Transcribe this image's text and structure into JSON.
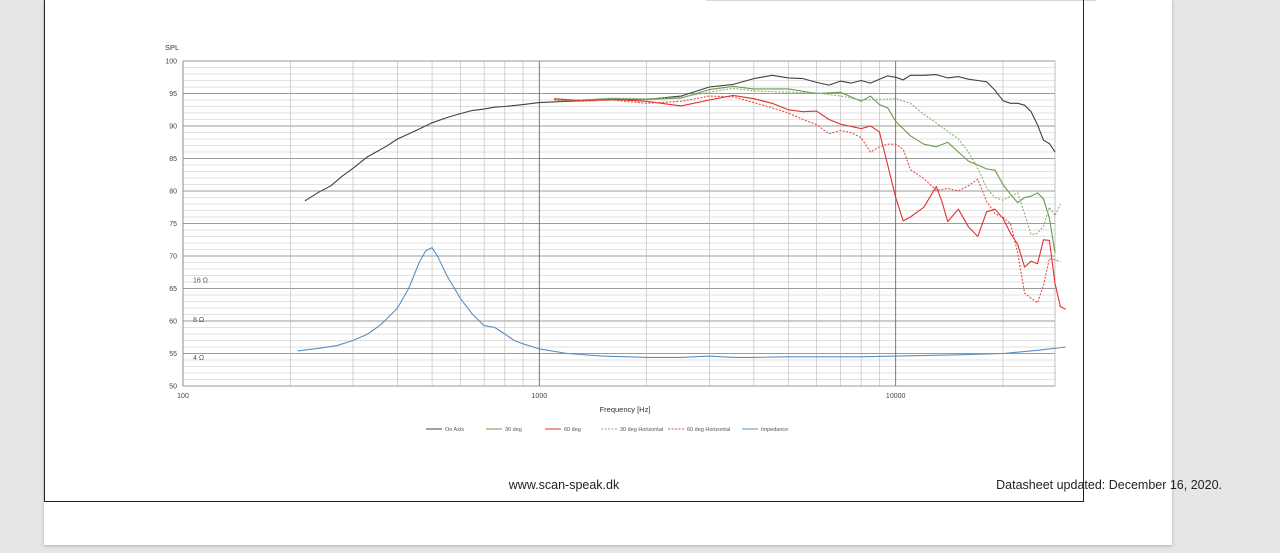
{
  "footer": {
    "url": "www.scan-speak.dk",
    "updated": "Datasheet updated: December 16, 2020."
  },
  "chart_data": {
    "type": "line",
    "ylabel": "SPL",
    "xlabel": "Frequency [Hz]",
    "xscale": "log",
    "xlim": [
      100,
      28000
    ],
    "ylim": [
      50,
      100
    ],
    "xticks": [
      {
        "value": 100,
        "label": "100"
      },
      {
        "value": 1000,
        "label": "1000"
      },
      {
        "value": 10000,
        "label": "10000"
      }
    ],
    "yticks": [
      {
        "value": 100,
        "label": "100"
      },
      {
        "value": 95,
        "label": "95"
      },
      {
        "value": 90,
        "label": "90"
      },
      {
        "value": 85,
        "label": "85"
      },
      {
        "value": 80,
        "label": "80"
      },
      {
        "value": 75,
        "label": "75"
      },
      {
        "value": 70,
        "label": "70"
      },
      {
        "value": 65,
        "label": "65"
      },
      {
        "value": 60,
        "label": "60"
      },
      {
        "value": 55,
        "label": "55"
      },
      {
        "value": 50,
        "label": "50"
      }
    ],
    "impedance_labels": [
      {
        "label": "16 Ω",
        "y": 66.3
      },
      {
        "label": "8 Ω",
        "y": 60.2
      },
      {
        "label": "4 Ω",
        "y": 54.4
      }
    ],
    "grid": true,
    "legend_position": "bottom",
    "series": [
      {
        "name": "On Axis",
        "color": "#404040",
        "dash": false,
        "points": [
          [
            220,
            78.5
          ],
          [
            240,
            79.8
          ],
          [
            260,
            80.8
          ],
          [
            280,
            82.3
          ],
          [
            300,
            83.5
          ],
          [
            330,
            85.3
          ],
          [
            370,
            86.8
          ],
          [
            400,
            88
          ],
          [
            450,
            89.3
          ],
          [
            500,
            90.5
          ],
          [
            550,
            91.3
          ],
          [
            600,
            91.9
          ],
          [
            650,
            92.4
          ],
          [
            700,
            92.6
          ],
          [
            750,
            92.9
          ],
          [
            800,
            93
          ],
          [
            900,
            93.3
          ],
          [
            1000,
            93.6
          ],
          [
            1200,
            93.8
          ],
          [
            1500,
            94
          ],
          [
            2000,
            94.1
          ],
          [
            2500,
            94.6
          ],
          [
            3000,
            96
          ],
          [
            3500,
            96.4
          ],
          [
            4000,
            97.3
          ],
          [
            4500,
            97.8
          ],
          [
            5000,
            97.4
          ],
          [
            5500,
            97.3
          ],
          [
            6000,
            96.7
          ],
          [
            6500,
            96.3
          ],
          [
            7000,
            96.9
          ],
          [
            7500,
            96.6
          ],
          [
            8000,
            97
          ],
          [
            8500,
            96.6
          ],
          [
            9000,
            97.2
          ],
          [
            9500,
            97.7
          ],
          [
            10000,
            97.5
          ],
          [
            10500,
            97.1
          ],
          [
            11000,
            97.8
          ],
          [
            12000,
            97.8
          ],
          [
            13000,
            97.9
          ],
          [
            14000,
            97.4
          ],
          [
            15000,
            97.6
          ],
          [
            16000,
            97.2
          ],
          [
            17000,
            97
          ],
          [
            18000,
            96.8
          ],
          [
            19000,
            95.5
          ],
          [
            20000,
            93.9
          ],
          [
            21000,
            93.5
          ],
          [
            22000,
            93.5
          ],
          [
            23000,
            93.2
          ],
          [
            24000,
            92.2
          ],
          [
            25000,
            90.2
          ],
          [
            26000,
            87.8
          ],
          [
            27000,
            87.3
          ],
          [
            28000,
            86
          ]
        ]
      },
      {
        "name": "30 deg",
        "color": "#6b9a4d",
        "dash": false,
        "points": [
          [
            1100,
            93.8
          ],
          [
            1300,
            94
          ],
          [
            1600,
            94.2
          ],
          [
            2000,
            94.1
          ],
          [
            2500,
            94.3
          ],
          [
            3000,
            95.6
          ],
          [
            3500,
            96.1
          ],
          [
            4000,
            95.7
          ],
          [
            5000,
            95.7
          ],
          [
            6000,
            95
          ],
          [
            7000,
            95.2
          ],
          [
            8000,
            93.8
          ],
          [
            8500,
            94.6
          ],
          [
            9000,
            93.3
          ],
          [
            9500,
            92.8
          ],
          [
            10000,
            90.7
          ],
          [
            11000,
            88.5
          ],
          [
            12000,
            87.2
          ],
          [
            13000,
            86.8
          ],
          [
            14000,
            87.5
          ],
          [
            15000,
            86
          ],
          [
            16000,
            84.6
          ],
          [
            17000,
            84
          ],
          [
            18000,
            83.4
          ],
          [
            19000,
            83.2
          ],
          [
            20000,
            81
          ],
          [
            21000,
            79.5
          ],
          [
            22000,
            78.2
          ],
          [
            23000,
            79
          ],
          [
            24000,
            79.2
          ],
          [
            25000,
            79.7
          ],
          [
            26000,
            78.8
          ],
          [
            27000,
            75.8
          ],
          [
            28000,
            70.5
          ]
        ]
      },
      {
        "name": "60 deg",
        "color": "#e03030",
        "dash": false,
        "points": [
          [
            1100,
            94.2
          ],
          [
            1300,
            93.9
          ],
          [
            1600,
            94.1
          ],
          [
            2000,
            93.8
          ],
          [
            2500,
            93.1
          ],
          [
            3000,
            94
          ],
          [
            3500,
            94.7
          ],
          [
            4000,
            94.2
          ],
          [
            4500,
            93.5
          ],
          [
            5000,
            92.5
          ],
          [
            5500,
            92.2
          ],
          [
            6000,
            92.3
          ],
          [
            6500,
            91
          ],
          [
            7000,
            90.3
          ],
          [
            8000,
            89.6
          ],
          [
            8500,
            90
          ],
          [
            9000,
            89.1
          ],
          [
            9500,
            84
          ],
          [
            10000,
            79
          ],
          [
            10500,
            75.4
          ],
          [
            11000,
            76
          ],
          [
            12000,
            77.5
          ],
          [
            13000,
            80.7
          ],
          [
            13500,
            78.3
          ],
          [
            14000,
            75.3
          ],
          [
            15000,
            77.2
          ],
          [
            16000,
            74.5
          ],
          [
            17000,
            73
          ],
          [
            18000,
            76.8
          ],
          [
            19000,
            77.2
          ],
          [
            20000,
            75.8
          ],
          [
            21000,
            73.5
          ],
          [
            22000,
            71.8
          ],
          [
            23000,
            68.3
          ],
          [
            24000,
            69.2
          ],
          [
            25000,
            68.8
          ],
          [
            26000,
            72.5
          ],
          [
            27000,
            72.4
          ],
          [
            28000,
            65.8
          ],
          [
            29000,
            62.2
          ],
          [
            30000,
            61.8
          ]
        ]
      },
      {
        "name": "30 deg Horizontal",
        "color": "#8fb070",
        "dash": true,
        "points": [
          [
            1300,
            94
          ],
          [
            1600,
            94.3
          ],
          [
            2000,
            94.2
          ],
          [
            2500,
            94.4
          ],
          [
            3000,
            95.2
          ],
          [
            3500,
            95.8
          ],
          [
            4000,
            95.4
          ],
          [
            5000,
            95.2
          ],
          [
            6000,
            95.1
          ],
          [
            7000,
            94.6
          ],
          [
            8000,
            94
          ],
          [
            9000,
            94.1
          ],
          [
            10000,
            94.2
          ],
          [
            11000,
            93.5
          ],
          [
            12000,
            91.8
          ],
          [
            13000,
            90.5
          ],
          [
            14000,
            89.2
          ],
          [
            15000,
            88
          ],
          [
            16000,
            86
          ],
          [
            17000,
            83.5
          ],
          [
            18000,
            80.5
          ],
          [
            19000,
            79
          ],
          [
            20000,
            78.6
          ],
          [
            21000,
            79.2
          ],
          [
            22000,
            79.7
          ],
          [
            23000,
            76.5
          ],
          [
            24000,
            73.3
          ],
          [
            25000,
            73.5
          ],
          [
            26000,
            74.6
          ],
          [
            27000,
            77.5
          ],
          [
            28000,
            76.2
          ],
          [
            29000,
            78
          ]
        ]
      },
      {
        "name": "60 deg Horizontal",
        "color": "#e84a4a",
        "dash": true,
        "points": [
          [
            1100,
            94.1
          ],
          [
            1300,
            93.8
          ],
          [
            1600,
            94
          ],
          [
            2000,
            93.5
          ],
          [
            2500,
            93.8
          ],
          [
            3000,
            94.6
          ],
          [
            3500,
            94.5
          ],
          [
            4000,
            93.6
          ],
          [
            4500,
            92.8
          ],
          [
            5000,
            92
          ],
          [
            5500,
            91
          ],
          [
            6000,
            90.2
          ],
          [
            6500,
            88.8
          ],
          [
            7000,
            89.3
          ],
          [
            7500,
            89
          ],
          [
            8000,
            88.2
          ],
          [
            8500,
            86
          ],
          [
            9000,
            86.8
          ],
          [
            9500,
            87.2
          ],
          [
            10000,
            87.2
          ],
          [
            10500,
            86.4
          ],
          [
            11000,
            83.3
          ],
          [
            12000,
            81.9
          ],
          [
            13000,
            80.1
          ],
          [
            14000,
            80.4
          ],
          [
            15000,
            80
          ],
          [
            16000,
            80.8
          ],
          [
            17000,
            81.8
          ],
          [
            18000,
            78.4
          ],
          [
            19000,
            76.5
          ],
          [
            20000,
            76
          ],
          [
            21000,
            75
          ],
          [
            22000,
            70.5
          ],
          [
            23000,
            64.3
          ],
          [
            24000,
            63.5
          ],
          [
            25000,
            62.8
          ],
          [
            26000,
            65.5
          ],
          [
            27000,
            69.6
          ],
          [
            28000,
            69.4
          ],
          [
            29000,
            69.1
          ]
        ]
      },
      {
        "name": "Impedance",
        "color": "#5b8fc4",
        "dash": false,
        "points": [
          [
            210,
            55.4
          ],
          [
            240,
            55.8
          ],
          [
            270,
            56.2
          ],
          [
            300,
            57
          ],
          [
            330,
            58
          ],
          [
            360,
            59.5
          ],
          [
            400,
            62
          ],
          [
            430,
            65
          ],
          [
            460,
            69
          ],
          [
            480,
            70.8
          ],
          [
            500,
            71.3
          ],
          [
            520,
            69.8
          ],
          [
            550,
            67
          ],
          [
            600,
            63.5
          ],
          [
            650,
            61
          ],
          [
            700,
            59.3
          ],
          [
            750,
            59
          ],
          [
            800,
            58
          ],
          [
            850,
            57
          ],
          [
            900,
            56.5
          ],
          [
            1000,
            55.7
          ],
          [
            1200,
            55
          ],
          [
            1500,
            54.6
          ],
          [
            2000,
            54.4
          ],
          [
            2500,
            54.4
          ],
          [
            3000,
            54.6
          ],
          [
            3500,
            54.4
          ],
          [
            4000,
            54.4
          ],
          [
            5000,
            54.5
          ],
          [
            6000,
            54.5
          ],
          [
            8000,
            54.5
          ],
          [
            10000,
            54.6
          ],
          [
            15000,
            54.8
          ],
          [
            20000,
            55
          ],
          [
            25000,
            55.5
          ],
          [
            30000,
            56
          ]
        ]
      }
    ]
  }
}
